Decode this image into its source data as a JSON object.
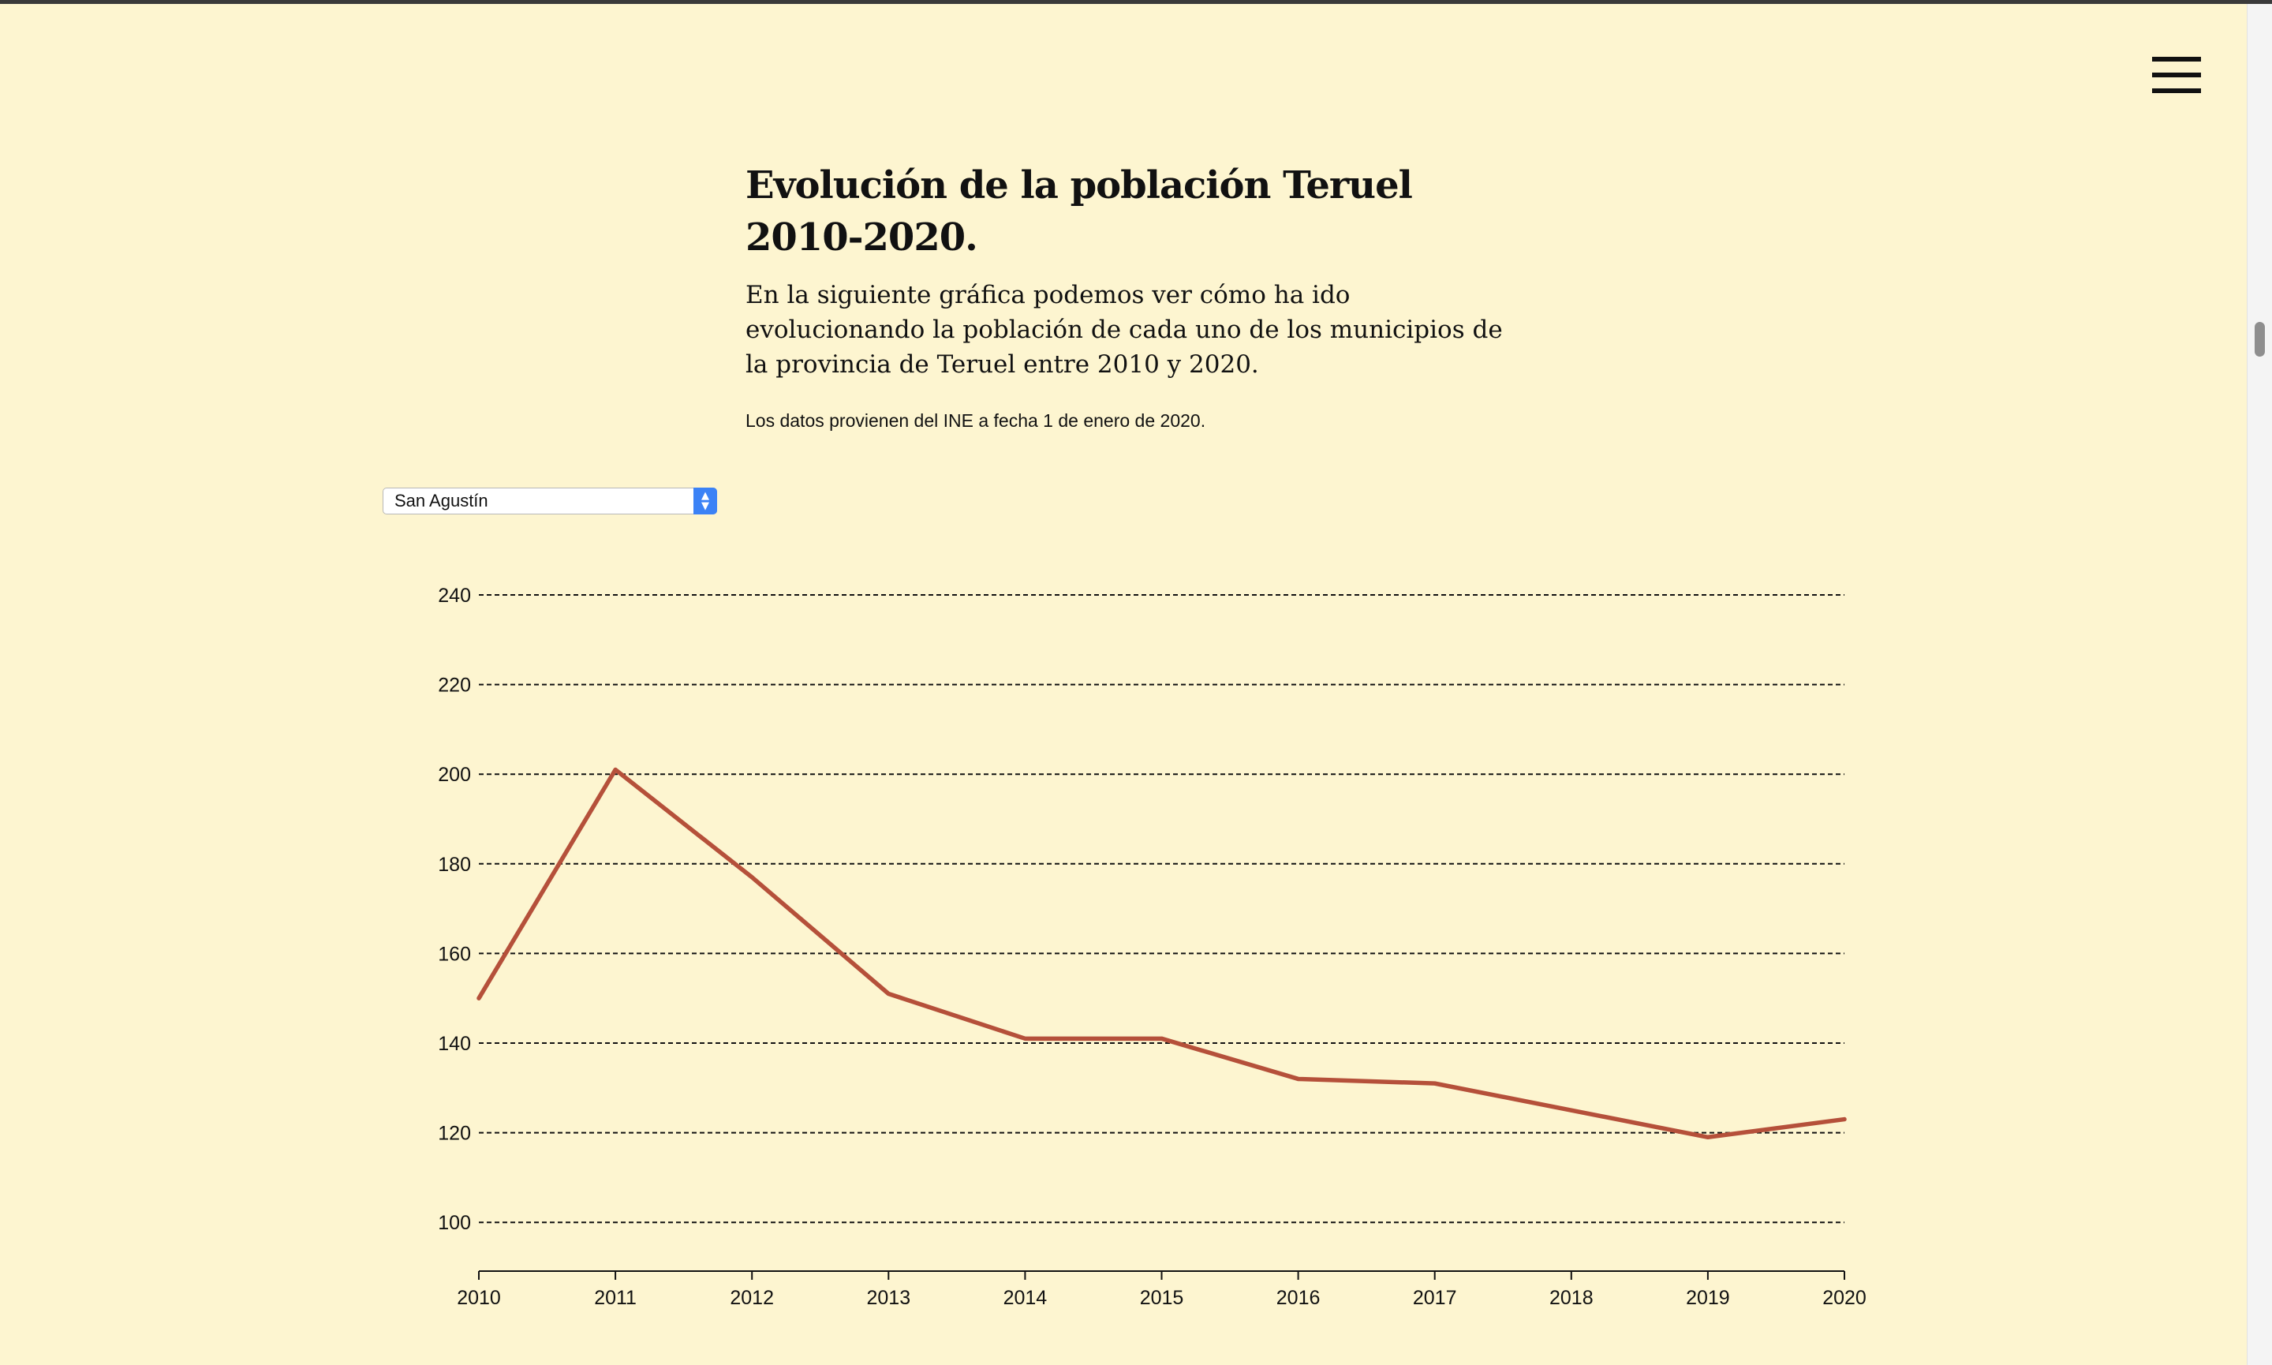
{
  "header": {
    "menu_icon": "hamburger-menu-icon"
  },
  "article": {
    "title": "Evolución de la población Teruel 2010-2020.",
    "intro": "En la siguiente gráfica podemos ver cómo ha ido evolucionando la población de cada uno de los municipios de la provincia de Teruel entre 2010 y 2020.",
    "source": "Los datos provienen del INE a fecha 1 de enero de 2020."
  },
  "selector": {
    "selected": "San Agustín",
    "arrow_icon": "updown-chevron-icon"
  },
  "colors": {
    "background": "#fdf5d0",
    "line": "#b5503a",
    "select_accent": "#3b82f6"
  },
  "chart_data": {
    "type": "line",
    "title": "",
    "xlabel": "",
    "ylabel": "",
    "x": [
      2010,
      2011,
      2012,
      2013,
      2014,
      2015,
      2016,
      2017,
      2018,
      2019,
      2020
    ],
    "series": [
      {
        "values": [
          150,
          201,
          177,
          151,
          141,
          141,
          132,
          131,
          125,
          119,
          123
        ]
      }
    ],
    "xticks": [
      "2010",
      "2011",
      "2012",
      "2013",
      "2014",
      "2015",
      "2016",
      "2017",
      "2018",
      "2019",
      "2020"
    ],
    "yticks": [
      "100",
      "120",
      "140",
      "160",
      "180",
      "200",
      "220",
      "240"
    ],
    "xlim": [
      2010,
      2020
    ],
    "ylim": [
      89,
      240
    ],
    "grid": "horizontal dashed",
    "legend": "none"
  }
}
